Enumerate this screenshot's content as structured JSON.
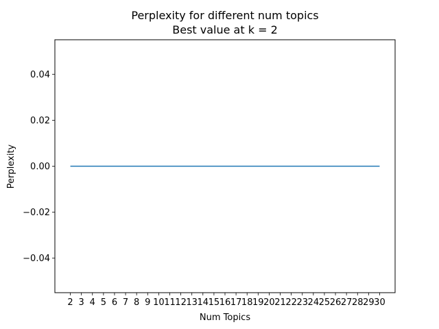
{
  "chart_data": {
    "type": "line",
    "title": "Perplexity for different num topics",
    "subtitle": "Best value at k = 2",
    "xlabel": "Num Topics",
    "ylabel": "Perplexity",
    "x": [
      2,
      3,
      4,
      5,
      6,
      7,
      8,
      9,
      10,
      11,
      12,
      13,
      14,
      15,
      16,
      17,
      18,
      19,
      20,
      21,
      22,
      23,
      24,
      25,
      26,
      27,
      28,
      29,
      30
    ],
    "series": [
      {
        "values": [
          0,
          0,
          0,
          0,
          0,
          0,
          0,
          0,
          0,
          0,
          0,
          0,
          0,
          0,
          0,
          0,
          0,
          0,
          0,
          0,
          0,
          0,
          0,
          0,
          0,
          0,
          0,
          0,
          0
        ],
        "color": "#1f77b4"
      }
    ],
    "xlim": [
      0.6,
      31.4
    ],
    "ylim": [
      -0.055,
      0.055
    ],
    "xticks": [
      2,
      3,
      4,
      5,
      6,
      7,
      8,
      9,
      10,
      11,
      12,
      13,
      14,
      15,
      16,
      17,
      18,
      19,
      20,
      21,
      22,
      23,
      24,
      25,
      26,
      27,
      28,
      29,
      30
    ],
    "xtick_labels": [
      "2",
      "3",
      "4",
      "5",
      "6",
      "7",
      "8",
      "9",
      "10",
      "11",
      "12",
      "13",
      "14",
      "15",
      "16",
      "17",
      "18",
      "19",
      "20",
      "21",
      "22",
      "23",
      "24",
      "25",
      "26",
      "27",
      "28",
      "29",
      "30"
    ],
    "yticks": [
      -0.04,
      -0.02,
      0.0,
      0.02,
      0.04
    ],
    "ytick_labels": [
      "−0.04",
      "−0.02",
      "0.00",
      "0.02",
      "0.04"
    ],
    "grid": false,
    "legend": "none"
  }
}
